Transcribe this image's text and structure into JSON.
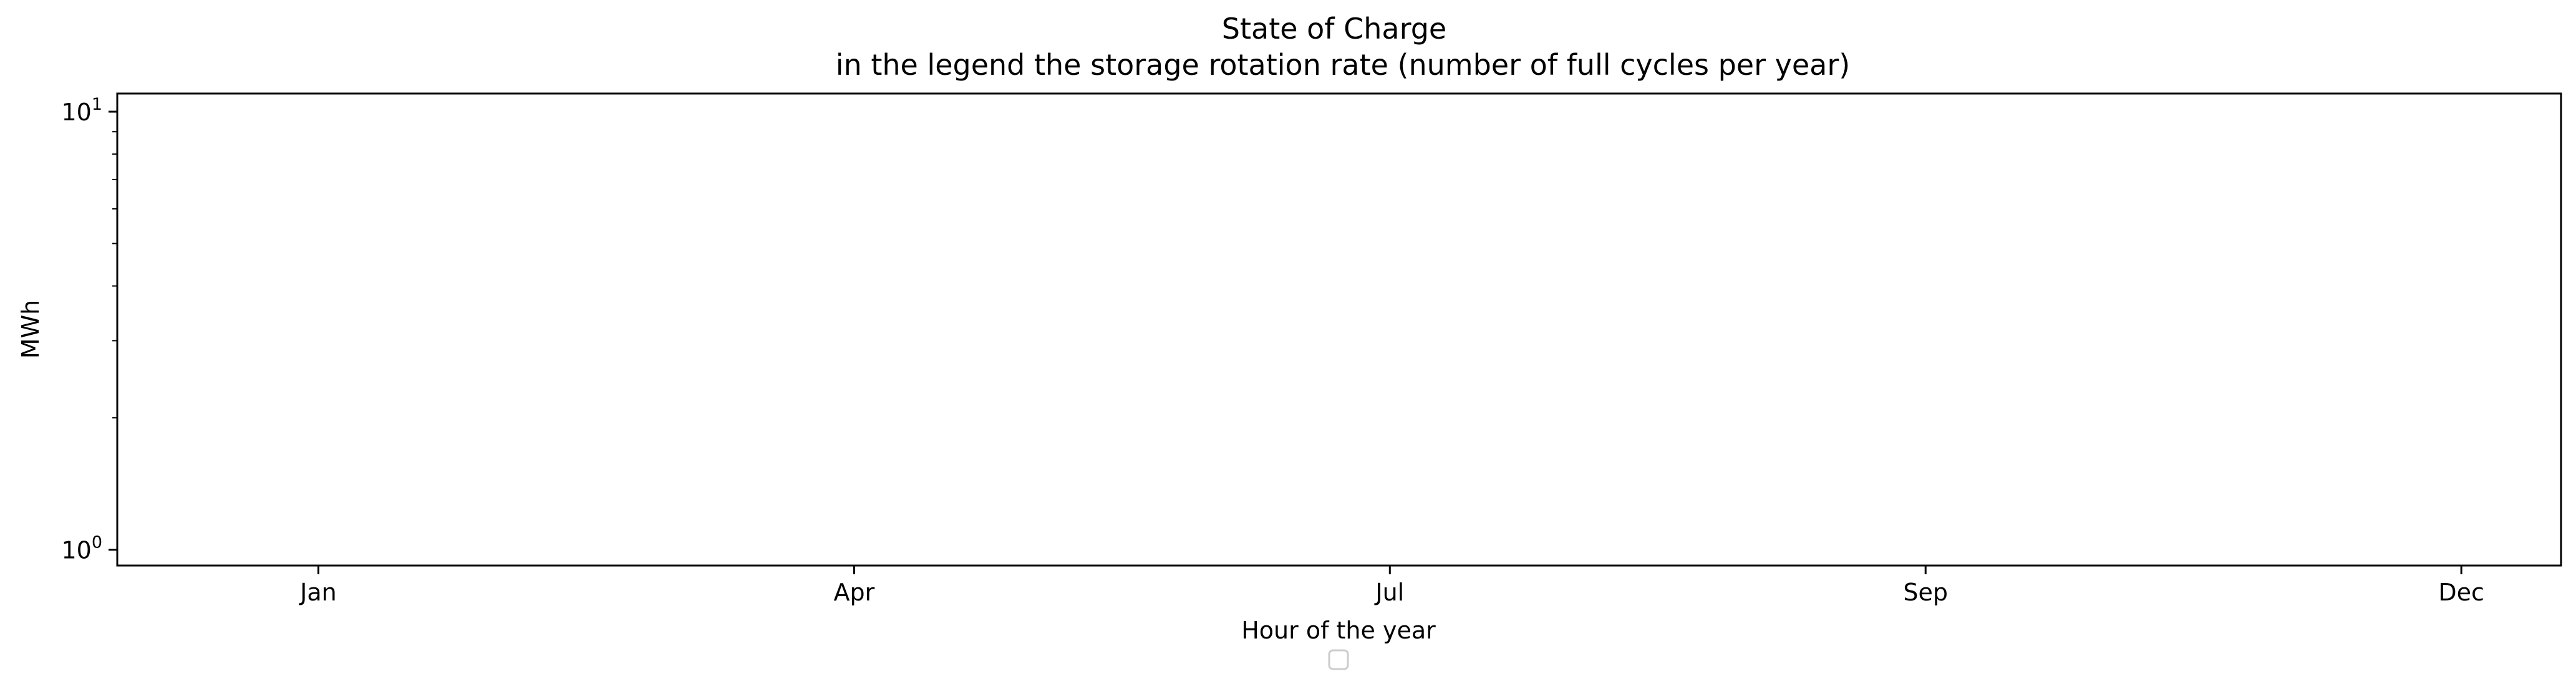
{
  "chart_data": {
    "type": "line",
    "title": "State of Charge",
    "subtitle": "in the legend the storage rotation rate (number of full cycles per year)",
    "xlabel": "Hour of the year",
    "ylabel": "MWh",
    "y_scale": "log",
    "ylim": [
      0.92,
      11
    ],
    "y_ticks": [
      {
        "value": 1,
        "base": "10",
        "exp": "0"
      },
      {
        "value": 10,
        "base": "10",
        "exp": "1"
      }
    ],
    "x_ticks": [
      "Jan",
      "Apr",
      "Jul",
      "Sep",
      "Dec"
    ],
    "series": [],
    "grid": false,
    "legend": {
      "placement": "bottom-center",
      "entries": []
    },
    "colors": {
      "axes": "#000000",
      "legend_border": "#cccccc",
      "background": "#ffffff"
    }
  }
}
